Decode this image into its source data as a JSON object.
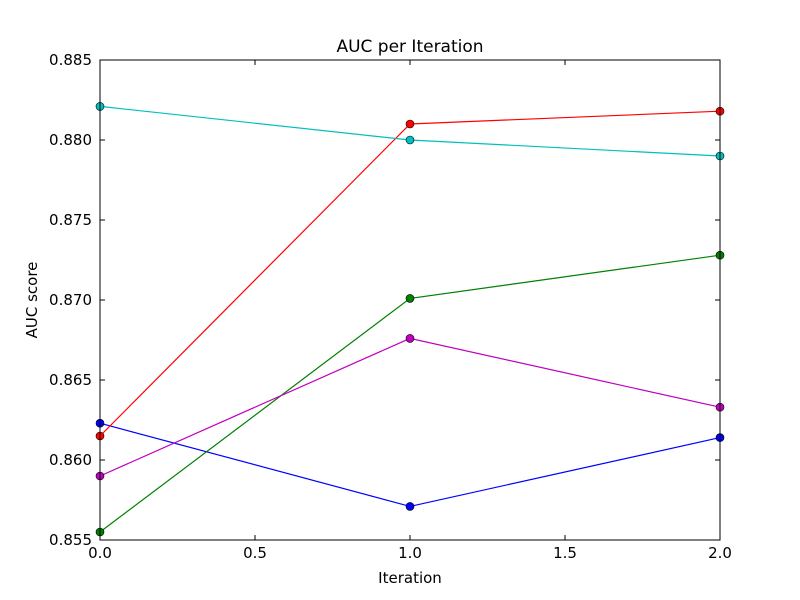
{
  "chart_data": {
    "type": "line",
    "title": "AUC per Iteration",
    "xlabel": "Iteration",
    "ylabel": "AUC score",
    "xlim": [
      0.0,
      2.0
    ],
    "ylim": [
      0.855,
      0.885
    ],
    "x_ticks": [
      "0.0",
      "0.5",
      "1.0",
      "1.5",
      "2.0"
    ],
    "y_ticks": [
      "0.855",
      "0.860",
      "0.865",
      "0.870",
      "0.875",
      "0.880",
      "0.885"
    ],
    "grid": false,
    "legend": false,
    "x": [
      0,
      1,
      2
    ],
    "series": [
      {
        "color": "#0000ff",
        "marker": "circle",
        "values": [
          0.8623,
          0.8571,
          0.8614
        ]
      },
      {
        "color": "#008000",
        "marker": "circle",
        "values": [
          0.8555,
          0.8701,
          0.8728
        ]
      },
      {
        "color": "#ff0000",
        "marker": "circle",
        "values": [
          0.8615,
          0.881,
          0.8818
        ]
      },
      {
        "color": "#00bfbf",
        "marker": "circle",
        "values": [
          0.8821,
          0.88,
          0.879
        ]
      },
      {
        "color": "#bf00bf",
        "marker": "circle",
        "values": [
          0.859,
          0.8676,
          0.8633
        ]
      }
    ]
  }
}
